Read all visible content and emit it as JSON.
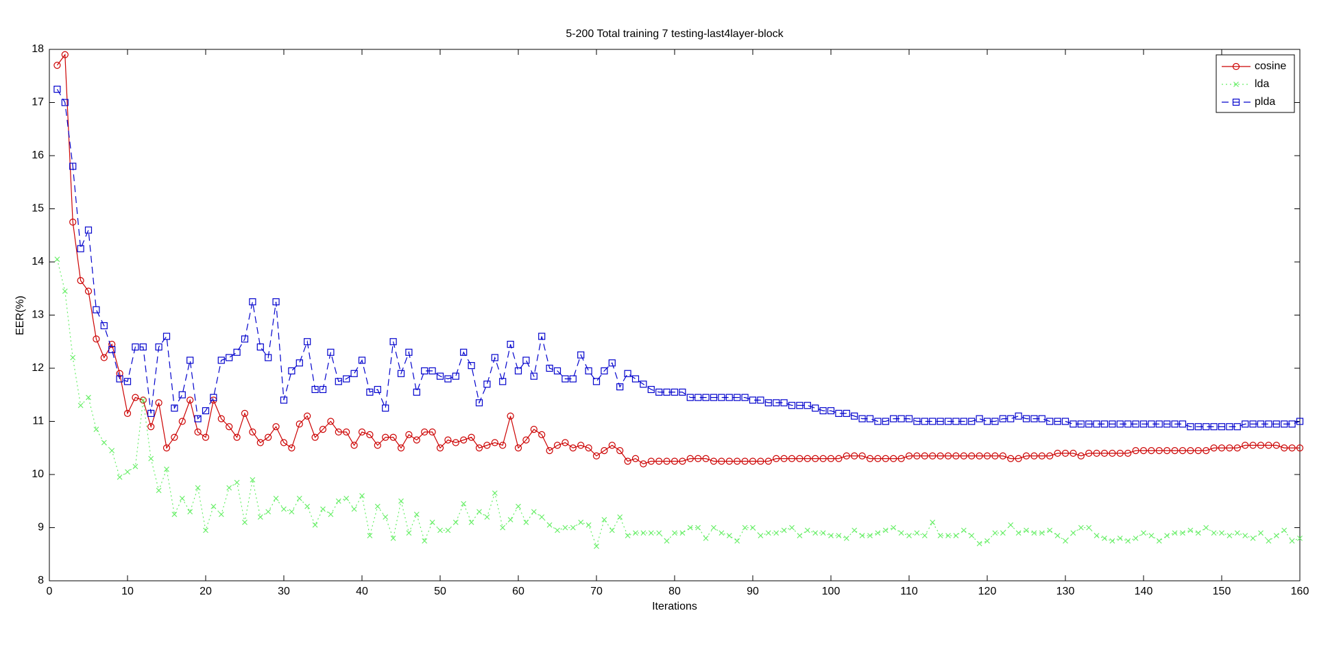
{
  "chart_data": {
    "type": "line",
    "title": "5-200 Total training 7 testing-last4layer-block",
    "x_label": "Iterations",
    "y_label": "EER(%)",
    "xlim": [
      0,
      160
    ],
    "ylim": [
      8,
      18
    ],
    "xticks": [
      0,
      10,
      20,
      30,
      40,
      50,
      60,
      70,
      80,
      90,
      100,
      110,
      120,
      130,
      140,
      150,
      160
    ],
    "yticks": [
      8,
      9,
      10,
      11,
      12,
      13,
      14,
      15,
      16,
      17,
      18
    ],
    "grid": false,
    "legend": "northeast",
    "x": [
      1,
      2,
      3,
      4,
      5,
      6,
      7,
      8,
      9,
      10,
      11,
      12,
      13,
      14,
      15,
      16,
      17,
      18,
      19,
      20,
      21,
      22,
      23,
      24,
      25,
      26,
      27,
      28,
      29,
      30,
      31,
      32,
      33,
      34,
      35,
      36,
      37,
      38,
      39,
      40,
      41,
      42,
      43,
      44,
      45,
      46,
      47,
      48,
      49,
      50,
      51,
      52,
      53,
      54,
      55,
      56,
      57,
      58,
      59,
      60,
      61,
      62,
      63,
      64,
      65,
      66,
      67,
      68,
      69,
      70,
      71,
      72,
      73,
      74,
      75,
      76,
      77,
      78,
      79,
      80,
      81,
      82,
      83,
      84,
      85,
      86,
      87,
      88,
      89,
      90,
      91,
      92,
      93,
      94,
      95,
      96,
      97,
      98,
      99,
      100,
      101,
      102,
      103,
      104,
      105,
      106,
      107,
      108,
      109,
      110,
      111,
      112,
      113,
      114,
      115,
      116,
      117,
      118,
      119,
      120,
      121,
      122,
      123,
      124,
      125,
      126,
      127,
      128,
      129,
      130,
      131,
      132,
      133,
      134,
      135,
      136,
      137,
      138,
      139,
      140,
      141,
      142,
      143,
      144,
      145,
      146,
      147,
      148,
      149,
      150,
      151,
      152,
      153,
      154,
      155,
      156,
      157,
      158,
      159,
      160
    ],
    "series": [
      {
        "name": "cosine",
        "color": "#cc0000",
        "line_style": "solid",
        "marker": "circle",
        "values": [
          17.7,
          17.9,
          14.75,
          13.65,
          13.45,
          12.55,
          12.2,
          12.45,
          11.9,
          11.15,
          11.45,
          11.4,
          10.9,
          11.35,
          10.5,
          10.7,
          11.0,
          11.4,
          10.8,
          10.7,
          11.4,
          11.05,
          10.9,
          10.7,
          11.15,
          10.8,
          10.6,
          10.7,
          10.9,
          10.6,
          10.5,
          10.95,
          11.1,
          10.7,
          10.85,
          11.0,
          10.8,
          10.8,
          10.55,
          10.8,
          10.75,
          10.55,
          10.7,
          10.7,
          10.5,
          10.75,
          10.65,
          10.8,
          10.8,
          10.5,
          10.65,
          10.6,
          10.65,
          10.7,
          10.5,
          10.55,
          10.6,
          10.55,
          11.1,
          10.5,
          10.65,
          10.85,
          10.75,
          10.45,
          10.55,
          10.6,
          10.5,
          10.55,
          10.5,
          10.35,
          10.45,
          10.55,
          10.45,
          10.25,
          10.3,
          10.2,
          10.25,
          10.25,
          10.25,
          10.25,
          10.25,
          10.3,
          10.3,
          10.3,
          10.25,
          10.25,
          10.25,
          10.25,
          10.25,
          10.25,
          10.25,
          10.25,
          10.3,
          10.3,
          10.3,
          10.3,
          10.3,
          10.3,
          10.3,
          10.3,
          10.3,
          10.35,
          10.35,
          10.35,
          10.3,
          10.3,
          10.3,
          10.3,
          10.3,
          10.35,
          10.35,
          10.35,
          10.35,
          10.35,
          10.35,
          10.35,
          10.35,
          10.35,
          10.35,
          10.35,
          10.35,
          10.35,
          10.3,
          10.3,
          10.35,
          10.35,
          10.35,
          10.35,
          10.4,
          10.4,
          10.4,
          10.35,
          10.4,
          10.4,
          10.4,
          10.4,
          10.4,
          10.4,
          10.45,
          10.45,
          10.45,
          10.45,
          10.45,
          10.45,
          10.45,
          10.45,
          10.45,
          10.45,
          10.5,
          10.5,
          10.5,
          10.5,
          10.55,
          10.55,
          10.55,
          10.55,
          10.55,
          10.5,
          10.5,
          10.5
        ]
      },
      {
        "name": "lda",
        "color": "#66ee66",
        "line_style": "dotted",
        "marker": "cross",
        "values": [
          14.05,
          13.45,
          12.2,
          11.3,
          11.45,
          10.85,
          10.6,
          10.45,
          9.95,
          10.05,
          10.15,
          11.4,
          10.3,
          9.7,
          10.1,
          9.25,
          9.55,
          9.3,
          9.75,
          8.95,
          9.4,
          9.25,
          9.75,
          9.85,
          9.1,
          9.9,
          9.2,
          9.3,
          9.55,
          9.35,
          9.3,
          9.55,
          9.4,
          9.05,
          9.35,
          9.25,
          9.5,
          9.55,
          9.35,
          9.6,
          8.85,
          9.4,
          9.2,
          8.8,
          9.5,
          8.9,
          9.25,
          8.75,
          9.1,
          8.95,
          8.95,
          9.1,
          9.45,
          9.1,
          9.3,
          9.2,
          9.65,
          9.0,
          9.15,
          9.4,
          9.1,
          9.3,
          9.2,
          9.05,
          8.95,
          9.0,
          9.0,
          9.1,
          9.05,
          8.65,
          9.15,
          8.95,
          9.2,
          8.85,
          8.9,
          8.9,
          8.9,
          8.9,
          8.75,
          8.9,
          8.9,
          9.0,
          9.0,
          8.8,
          9.0,
          8.9,
          8.85,
          8.75,
          9.0,
          9.0,
          8.85,
          8.9,
          8.9,
          8.95,
          9.0,
          8.85,
          8.95,
          8.9,
          8.9,
          8.85,
          8.85,
          8.8,
          8.95,
          8.85,
          8.85,
          8.9,
          8.95,
          9.0,
          8.9,
          8.85,
          8.9,
          8.85,
          9.1,
          8.85,
          8.85,
          8.85,
          8.95,
          8.85,
          8.7,
          8.75,
          8.9,
          8.9,
          9.05,
          8.9,
          8.95,
          8.9,
          8.9,
          8.95,
          8.85,
          8.75,
          8.9,
          9.0,
          9.0,
          8.85,
          8.8,
          8.75,
          8.8,
          8.75,
          8.8,
          8.9,
          8.85,
          8.75,
          8.85,
          8.9,
          8.9,
          8.95,
          8.9,
          9.0,
          8.9,
          8.9,
          8.85,
          8.9,
          8.85,
          8.8,
          8.9,
          8.75,
          8.85,
          8.95,
          8.75,
          8.8
        ]
      },
      {
        "name": "plda",
        "color": "#0000cc",
        "line_style": "dashed",
        "marker": "square",
        "values": [
          17.25,
          17.0,
          15.8,
          14.25,
          14.6,
          13.1,
          12.8,
          12.35,
          11.8,
          11.75,
          12.4,
          12.4,
          11.15,
          12.4,
          12.6,
          11.25,
          11.5,
          12.15,
          11.05,
          11.2,
          11.45,
          12.15,
          12.2,
          12.3,
          12.55,
          13.25,
          12.4,
          12.2,
          13.25,
          11.4,
          11.95,
          12.1,
          12.5,
          11.6,
          11.6,
          12.3,
          11.75,
          11.8,
          11.9,
          12.15,
          11.55,
          11.6,
          11.25,
          12.5,
          11.9,
          12.3,
          11.55,
          11.95,
          11.95,
          11.85,
          11.8,
          11.85,
          12.3,
          12.05,
          11.35,
          11.7,
          12.2,
          11.75,
          12.45,
          11.95,
          12.15,
          11.85,
          12.6,
          12.0,
          11.95,
          11.8,
          11.8,
          12.25,
          11.95,
          11.75,
          11.95,
          12.1,
          11.65,
          11.9,
          11.8,
          11.7,
          11.6,
          11.55,
          11.55,
          11.55,
          11.55,
          11.45,
          11.45,
          11.45,
          11.45,
          11.45,
          11.45,
          11.45,
          11.45,
          11.4,
          11.4,
          11.35,
          11.35,
          11.35,
          11.3,
          11.3,
          11.3,
          11.25,
          11.2,
          11.2,
          11.15,
          11.15,
          11.1,
          11.05,
          11.05,
          11.0,
          11.0,
          11.05,
          11.05,
          11.05,
          11.0,
          11.0,
          11.0,
          11.0,
          11.0,
          11.0,
          11.0,
          11.0,
          11.05,
          11.0,
          11.0,
          11.05,
          11.05,
          11.1,
          11.05,
          11.05,
          11.05,
          11.0,
          11.0,
          11.0,
          10.95,
          10.95,
          10.95,
          10.95,
          10.95,
          10.95,
          10.95,
          10.95,
          10.95,
          10.95,
          10.95,
          10.95,
          10.95,
          10.95,
          10.95,
          10.9,
          10.9,
          10.9,
          10.9,
          10.9,
          10.9,
          10.9,
          10.95,
          10.95,
          10.95,
          10.95,
          10.95,
          10.95,
          10.95,
          11.0
        ]
      }
    ]
  }
}
